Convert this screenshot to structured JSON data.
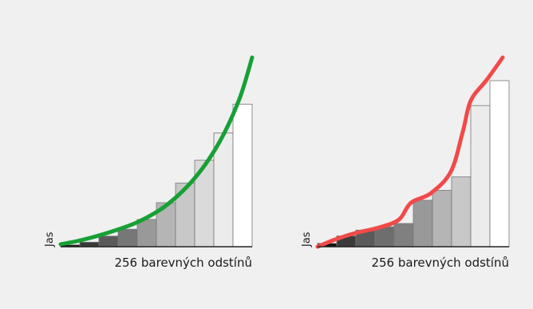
{
  "panels": [
    {
      "id": "left",
      "y_label": "Jas",
      "x_label": "256 barevných odstínů",
      "curve_color": "#17a035",
      "bar_values": [
        0.012,
        0.03,
        0.07,
        0.115,
        0.18,
        0.29,
        0.42,
        0.57,
        0.75,
        0.94
      ],
      "bar_fills": [
        "#111111",
        "#3a3a3a",
        "#5a5a5a",
        "#777777",
        "#999999",
        "#b5b5b5",
        "#c8c8c8",
        "#dadada",
        "#ececec",
        "#ffffff"
      ]
    },
    {
      "id": "right",
      "y_label": "Jas",
      "x_label": "256 barevných odstínů",
      "curve_color": "#f24949",
      "bar_values": [
        0.02,
        0.065,
        0.1,
        0.12,
        0.14,
        0.28,
        0.34,
        0.42,
        0.85,
        1.0
      ],
      "bar_fills": [
        "#111111",
        "#3a3a3a",
        "#5a5a5a",
        "#6e6e6e",
        "#808080",
        "#999999",
        "#b5b5b5",
        "#c8c8c8",
        "#ececec",
        "#ffffff"
      ]
    }
  ]
}
